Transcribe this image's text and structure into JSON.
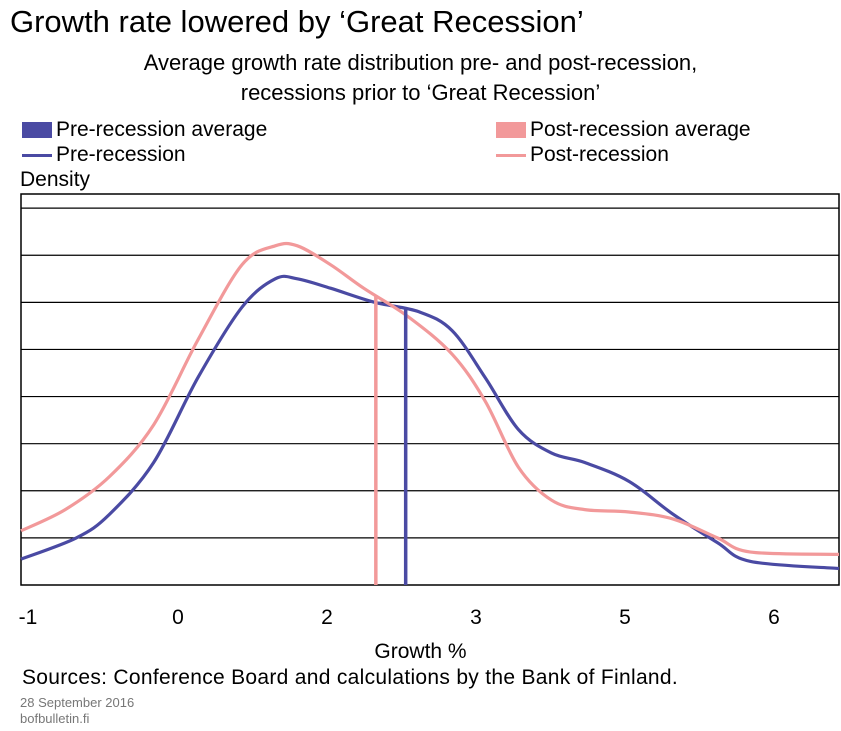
{
  "header": {
    "title": "Growth rate lowered by ‘Great Recession’",
    "subtitle_line1": "Average growth rate distribution pre- and post-recession,",
    "subtitle_line2": "recessions prior to ‘Great Recession’"
  },
  "legend": {
    "pre_avg": "Pre-recession average",
    "pre_line": "Pre-recession",
    "post_avg": "Post-recession average",
    "post_line": "Post-recession"
  },
  "footer": {
    "sources": "Sources: Conference Board and calculations by the Bank of Finland.",
    "date": "28 September 2016",
    "site": "bofbulletin.fi"
  },
  "colors": {
    "pre": "#4a4aa3",
    "post": "#f2999a"
  },
  "chart_data": {
    "type": "line",
    "ylabel": "Density",
    "xlabel": "Growth %",
    "xlim": [
      -1,
      6.4
    ],
    "tick_labels": [
      {
        "x": -1,
        "label": "-1"
      },
      {
        "x": 0,
        "label": "0"
      },
      {
        "x": 1,
        "label": "2"
      },
      {
        "x": 2,
        "label": "3"
      },
      {
        "x": 3,
        "label": "5"
      },
      {
        "x": 4,
        "label": "6"
      }
    ],
    "ylim": [
      0,
      8.3
    ],
    "gridlines": [
      1,
      2,
      3,
      4,
      5,
      6,
      7,
      8
    ],
    "grid": true,
    "averages": [
      {
        "series": "Pre-recession average",
        "x": 2.48
      },
      {
        "series": "Post-recession average",
        "x": 2.21
      }
    ],
    "series": [
      {
        "name": "Pre-recession",
        "points": [
          [
            -1.0,
            0.55
          ],
          [
            -0.5,
            1.0
          ],
          [
            -0.2,
            1.5
          ],
          [
            0.2,
            2.6
          ],
          [
            0.6,
            4.4
          ],
          [
            1.0,
            5.9
          ],
          [
            1.3,
            6.5
          ],
          [
            1.5,
            6.5
          ],
          [
            1.8,
            6.3
          ],
          [
            2.2,
            6.0
          ],
          [
            2.6,
            5.8
          ],
          [
            2.9,
            5.4
          ],
          [
            3.2,
            4.4
          ],
          [
            3.5,
            3.3
          ],
          [
            3.8,
            2.8
          ],
          [
            4.1,
            2.6
          ],
          [
            4.5,
            2.2
          ],
          [
            4.9,
            1.5
          ],
          [
            5.3,
            0.9
          ],
          [
            5.6,
            0.5
          ],
          [
            6.4,
            0.35
          ]
        ],
        "x_scale": "raw"
      },
      {
        "name": "Post-recession",
        "points": [
          [
            -1.0,
            1.15
          ],
          [
            -0.6,
            1.6
          ],
          [
            -0.2,
            2.3
          ],
          [
            0.2,
            3.4
          ],
          [
            0.6,
            5.2
          ],
          [
            1.0,
            6.8
          ],
          [
            1.3,
            7.2
          ],
          [
            1.5,
            7.2
          ],
          [
            1.8,
            6.8
          ],
          [
            2.1,
            6.3
          ],
          [
            2.5,
            5.7
          ],
          [
            2.9,
            4.9
          ],
          [
            3.2,
            3.9
          ],
          [
            3.5,
            2.5
          ],
          [
            3.8,
            1.8
          ],
          [
            4.1,
            1.6
          ],
          [
            4.5,
            1.55
          ],
          [
            4.9,
            1.4
          ],
          [
            5.3,
            1.0
          ],
          [
            5.6,
            0.7
          ],
          [
            6.4,
            0.65
          ]
        ],
        "x_scale": "raw"
      }
    ]
  }
}
